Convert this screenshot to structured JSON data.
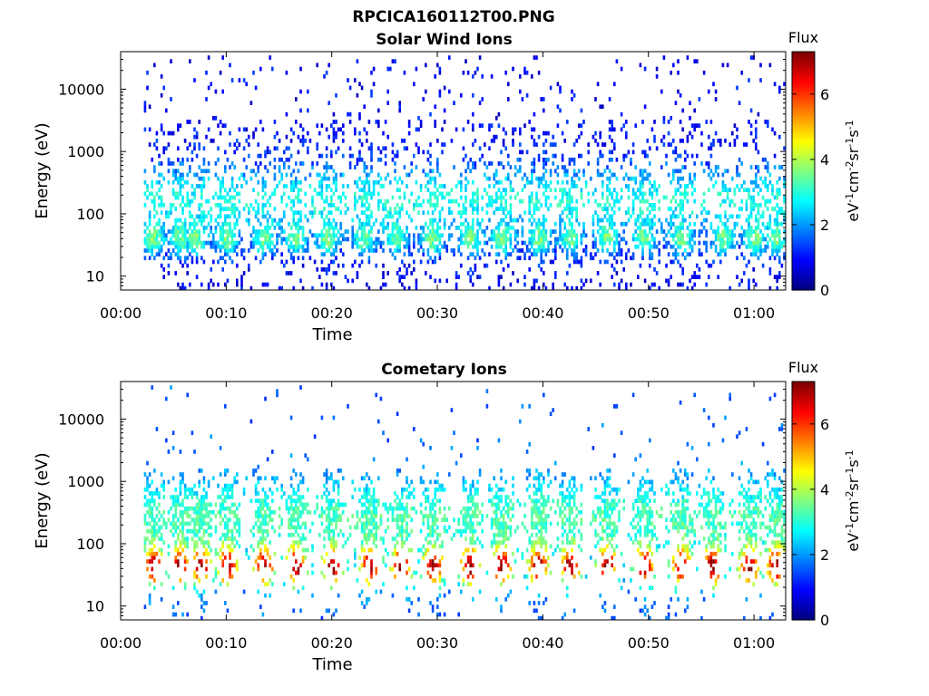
{
  "figure_title": "RPCICA160112T00.PNG",
  "colorbar_units_base": "eV",
  "colorbar_units_parts": [
    {
      "t": "eV",
      "sup": false
    },
    {
      "t": "-1",
      "sup": true
    },
    {
      "t": "cm",
      "sup": false
    },
    {
      "t": "-2",
      "sup": true
    },
    {
      "t": "sr",
      "sup": false
    },
    {
      "t": "-1",
      "sup": true
    },
    {
      "t": "s",
      "sup": false
    },
    {
      "t": "-1",
      "sup": true
    }
  ],
  "chart_data": [
    {
      "type": "heatmap",
      "title": "Solar Wind Ions",
      "xlabel": "Time",
      "ylabel": "Energy (eV)",
      "x_unit": "minutes",
      "xlim": [
        0,
        63
      ],
      "x_ticks": [
        0,
        10,
        20,
        30,
        40,
        50,
        60
      ],
      "x_tick_labels": [
        "00:00",
        "00:10",
        "00:20",
        "00:30",
        "00:40",
        "00:50",
        "01:00"
      ],
      "yscale": "log",
      "ylim": [
        6,
        40000
      ],
      "y_ticks": [
        10,
        100,
        1000,
        10000
      ],
      "y_tick_labels": [
        "10",
        "100",
        "1000",
        "10000"
      ],
      "data_start_min": 2.2,
      "data_end_min": 62.8,
      "colorbar": {
        "label": "Flux",
        "range": [
          0,
          7.3
        ],
        "ticks": [
          0,
          2,
          4,
          6
        ],
        "tick_labels": [
          "0",
          "2",
          "4",
          "6"
        ],
        "colormap": "jet"
      },
      "bursts_min": [
        3,
        5.5,
        7,
        10,
        13.5,
        16.5,
        19.5,
        23,
        26,
        29.5,
        33,
        36,
        39.5,
        42.5,
        46,
        49.5,
        53,
        57,
        60,
        62
      ],
      "peak_energy_eV": 35,
      "peak_flux": 4.0
    },
    {
      "type": "heatmap",
      "title": "Cometary Ions",
      "xlabel": "Time",
      "ylabel": "Energy (eV)",
      "x_unit": "minutes",
      "xlim": [
        0,
        63
      ],
      "x_ticks": [
        0,
        10,
        20,
        30,
        40,
        50,
        60
      ],
      "x_tick_labels": [
        "00:00",
        "00:10",
        "00:20",
        "00:30",
        "00:40",
        "00:50",
        "01:00"
      ],
      "yscale": "log",
      "ylim": [
        6,
        40000
      ],
      "y_ticks": [
        10,
        100,
        1000,
        10000
      ],
      "y_tick_labels": [
        "10",
        "100",
        "1000",
        "10000"
      ],
      "data_start_min": 2.2,
      "data_end_min": 62.8,
      "colorbar": {
        "label": "Flux",
        "range": [
          0,
          7.3
        ],
        "ticks": [
          0,
          2,
          4,
          6
        ],
        "tick_labels": [
          "0",
          "2",
          "4",
          "6"
        ],
        "colormap": "jet"
      },
      "bursts_min": [
        3,
        5.5,
        7.5,
        10,
        13.5,
        16.5,
        20,
        23.5,
        26.5,
        29.5,
        33,
        36,
        39.5,
        42.5,
        46,
        49.5,
        53,
        56,
        59.5,
        62
      ],
      "peak_energy_eV": 40,
      "peak_flux": 6.3
    }
  ]
}
